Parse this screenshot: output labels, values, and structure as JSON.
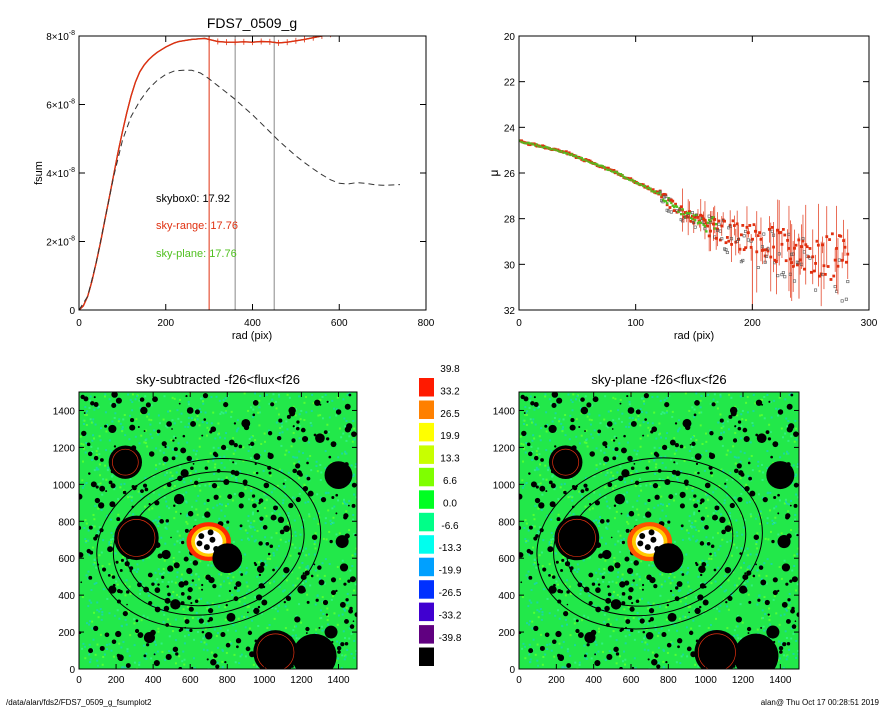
{
  "footer": {
    "left": "/data/alan/fds2/FDS7_0509_g_fsumplot2",
    "right": "alan@  Thu Oct 17 00:28:51 2019"
  },
  "colors": {
    "sky_range": "#e03010",
    "sky_plane": "#50c020",
    "dashed": "#333333",
    "vline_red": "#e03010",
    "vline_gray": "#888888"
  },
  "chart_data": [
    {
      "type": "line",
      "title": "FDS7_0509_g",
      "xlabel": "rad (pix)",
      "ylabel": "fsum",
      "xlim": [
        0,
        800
      ],
      "ylim": [
        0,
        8e-08
      ],
      "xticks": [
        "0",
        "200",
        "400",
        "600",
        "800"
      ],
      "yticks": [
        {
          "value": 0,
          "mant": "0",
          "exp": ""
        },
        {
          "value": 2e-08,
          "mant": "2×10",
          "exp": "-8"
        },
        {
          "value": 4e-08,
          "mant": "4×10",
          "exp": "-8"
        },
        {
          "value": 6e-08,
          "mant": "6×10",
          "exp": "-8"
        },
        {
          "value": 8e-08,
          "mant": "8×10",
          "exp": "-8"
        }
      ],
      "annotations": [
        {
          "text": "skybox0: 17.92",
          "color": "#000000"
        },
        {
          "text": "sky-range: 17.76",
          "color": "#e03010"
        },
        {
          "text": "sky-plane: 17.76",
          "color": "#50c020"
        }
      ],
      "vlines": [
        {
          "x": 300,
          "color": "#e03010"
        },
        {
          "x": 360,
          "color": "#888888"
        },
        {
          "x": 450,
          "color": "#888888"
        }
      ],
      "series": [
        {
          "style": "solid",
          "color": "#e03010",
          "x": [
            0,
            10,
            20,
            30,
            40,
            50,
            60,
            70,
            80,
            90,
            100,
            110,
            120,
            130,
            140,
            150,
            160,
            170,
            180,
            190,
            200,
            210,
            220,
            230,
            240,
            250,
            260,
            270,
            280,
            290,
            300,
            320,
            340,
            360,
            380,
            400,
            420,
            440,
            460,
            480,
            500,
            520,
            540,
            560,
            580
          ],
          "y": [
            0,
            1.2e-09,
            4e-09,
            8.5e-09,
            1.4e-08,
            2e-08,
            2.65e-08,
            3.3e-08,
            3.95e-08,
            4.6e-08,
            5.2e-08,
            5.75e-08,
            6.25e-08,
            6.65e-08,
            6.95e-08,
            7.15e-08,
            7.3e-08,
            7.42e-08,
            7.52e-08,
            7.6e-08,
            7.68e-08,
            7.74e-08,
            7.8e-08,
            7.84e-08,
            7.86e-08,
            7.88e-08,
            7.9e-08,
            7.91e-08,
            7.92e-08,
            7.93e-08,
            7.9e-08,
            7.84e-08,
            7.82e-08,
            7.82e-08,
            7.83e-08,
            7.82e-08,
            7.84e-08,
            7.83e-08,
            7.8e-08,
            7.82e-08,
            7.86e-08,
            7.9e-08,
            7.95e-08,
            8e-08,
            8.05e-08
          ]
        },
        {
          "style": "dashed",
          "color": "#333333",
          "x": [
            0,
            20,
            40,
            60,
            80,
            100,
            120,
            140,
            160,
            180,
            200,
            220,
            240,
            260,
            280,
            300,
            320,
            340,
            360,
            380,
            400,
            420,
            440,
            460,
            480,
            500,
            520,
            540,
            560,
            580,
            600,
            620,
            640,
            660,
            680,
            700,
            720,
            740
          ],
          "y": [
            0,
            4e-09,
            1.4e-08,
            2.65e-08,
            3.9e-08,
            4.95e-08,
            5.65e-08,
            6.1e-08,
            6.45e-08,
            6.7e-08,
            6.88e-08,
            6.98e-08,
            7e-08,
            7e-08,
            6.92e-08,
            6.75e-08,
            6.55e-08,
            6.35e-08,
            6.15e-08,
            5.92e-08,
            5.7e-08,
            5.45e-08,
            5.2e-08,
            4.95e-08,
            4.72e-08,
            4.5e-08,
            4.3e-08,
            4.12e-08,
            3.95e-08,
            3.8e-08,
            3.7e-08,
            3.68e-08,
            3.72e-08,
            3.7e-08,
            3.66e-08,
            3.64e-08,
            3.65e-08,
            3.66e-08
          ]
        }
      ]
    },
    {
      "type": "scatter",
      "title": "",
      "xlabel": "rad (pix)",
      "ylabel": "μ",
      "xlim": [
        0,
        300
      ],
      "ylim": [
        32,
        20
      ],
      "xticks": [
        "0",
        "100",
        "200",
        "300"
      ],
      "yticks": [
        "20",
        "22",
        "24",
        "26",
        "28",
        "30",
        "32"
      ],
      "trend": [
        {
          "x": 0,
          "y": 24.6
        },
        {
          "x": 40,
          "y": 25.1
        },
        {
          "x": 80,
          "y": 25.9
        },
        {
          "x": 120,
          "y": 26.9
        },
        {
          "x": 140,
          "y": 27.7
        },
        {
          "x": 160,
          "y": 28.2
        },
        {
          "x": 200,
          "y": 28.9
        },
        {
          "x": 240,
          "y": 29.4
        },
        {
          "x": 280,
          "y": 29.8
        }
      ],
      "series": [
        {
          "name": "sky-range",
          "color": "#e03010"
        },
        {
          "name": "sky-plane",
          "color": "#50c020"
        },
        {
          "name": "skybox0",
          "color": "#555555"
        }
      ]
    },
    {
      "type": "heatmap",
      "title": "sky-subtracted -f26<flux<f26",
      "xlim": [
        0,
        1500
      ],
      "ylim": [
        0,
        1500
      ],
      "xticks": [
        "0",
        "200",
        "400",
        "600",
        "800",
        "1000",
        "1200",
        "1400"
      ],
      "yticks": [
        "0",
        "200",
        "400",
        "600",
        "800",
        "1000",
        "1200",
        "1400"
      ]
    },
    {
      "type": "heatmap",
      "title": "sky-plane -f26<flux<f26",
      "xlim": [
        0,
        1500
      ],
      "ylim": [
        0,
        1500
      ],
      "xticks": [
        "0",
        "200",
        "400",
        "600",
        "800",
        "1000",
        "1200",
        "1400"
      ],
      "yticks": [
        "0",
        "200",
        "400",
        "600",
        "800",
        "1000",
        "1200",
        "1400"
      ]
    }
  ],
  "colorbar": {
    "labels": [
      "39.8",
      "33.2",
      "26.5",
      "19.9",
      "13.3",
      "6.6",
      "0.0",
      "-6.6",
      "-13.3",
      "-19.9",
      "-26.5",
      "-33.2",
      "-39.8"
    ],
    "colors": [
      "#ff1a00",
      "#ff8000",
      "#ffff00",
      "#c8ff00",
      "#7fff00",
      "#00ff22",
      "#00ff88",
      "#00ffee",
      "#00a0ff",
      "#0030ff",
      "#4000d0",
      "#600080",
      "#000000"
    ]
  },
  "sources": [
    {
      "x": 250,
      "y": 1120,
      "r": 90
    },
    {
      "x": 540,
      "y": 920,
      "r": 28
    },
    {
      "x": 570,
      "y": 1060,
      "r": 22
    },
    {
      "x": 1400,
      "y": 1050,
      "r": 75
    },
    {
      "x": 310,
      "y": 710,
      "r": 120
    },
    {
      "x": 470,
      "y": 620,
      "r": 25
    },
    {
      "x": 800,
      "y": 600,
      "r": 80
    },
    {
      "x": 640,
      "y": 640,
      "r": 28
    },
    {
      "x": 720,
      "y": 660,
      "r": 20
    },
    {
      "x": 1060,
      "y": 90,
      "r": 120
    },
    {
      "x": 1270,
      "y": 70,
      "r": 120
    },
    {
      "x": 1360,
      "y": 200,
      "r": 35
    },
    {
      "x": 1420,
      "y": 690,
      "r": 35
    },
    {
      "x": 1120,
      "y": 760,
      "r": 18
    },
    {
      "x": 980,
      "y": 540,
      "r": 20
    },
    {
      "x": 1050,
      "y": 820,
      "r": 16
    },
    {
      "x": 180,
      "y": 430,
      "r": 22
    },
    {
      "x": 520,
      "y": 350,
      "r": 28
    },
    {
      "x": 820,
      "y": 280,
      "r": 24
    },
    {
      "x": 700,
      "y": 180,
      "r": 20
    },
    {
      "x": 380,
      "y": 170,
      "r": 30
    },
    {
      "x": 180,
      "y": 1300,
      "r": 22
    },
    {
      "x": 600,
      "y": 1400,
      "r": 18
    },
    {
      "x": 900,
      "y": 1330,
      "r": 24
    },
    {
      "x": 1150,
      "y": 1400,
      "r": 20
    },
    {
      "x": 1300,
      "y": 1250,
      "r": 26
    },
    {
      "x": 1200,
      "y": 430,
      "r": 22
    },
    {
      "x": 960,
      "y": 1150,
      "r": 18
    },
    {
      "x": 350,
      "y": 1400,
      "r": 20
    },
    {
      "x": 1450,
      "y": 1420,
      "r": 16
    },
    {
      "x": 1430,
      "y": 550,
      "r": 22
    },
    {
      "x": 740,
      "y": 930,
      "r": 14
    },
    {
      "x": 260,
      "y": 570,
      "r": 14
    },
    {
      "x": 1250,
      "y": 950,
      "r": 16
    },
    {
      "x": 860,
      "y": 460,
      "r": 16
    },
    {
      "x": 600,
      "y": 430,
      "r": 14
    },
    {
      "x": 420,
      "y": 900,
      "r": 14
    },
    {
      "x": 1000,
      "y": 360,
      "r": 16
    },
    {
      "x": 80,
      "y": 1000,
      "r": 16
    },
    {
      "x": 90,
      "y": 220,
      "r": 14
    },
    {
      "x": 1330,
      "y": 360,
      "r": 14
    },
    {
      "x": 1180,
      "y": 1100,
      "r": 14
    },
    {
      "x": 1080,
      "y": 1250,
      "r": 12
    },
    {
      "x": 780,
      "y": 1200,
      "r": 14
    },
    {
      "x": 460,
      "y": 1220,
      "r": 14
    },
    {
      "x": 300,
      "y": 980,
      "r": 12
    },
    {
      "x": 660,
      "y": 260,
      "r": 14
    },
    {
      "x": 250,
      "y": 300,
      "r": 14
    },
    {
      "x": 1440,
      "y": 830,
      "r": 14
    },
    {
      "x": 980,
      "y": 680,
      "r": 12
    }
  ],
  "ellipses": [
    {
      "cx": 700,
      "cy": 680,
      "rx": 450,
      "ry": 330
    },
    {
      "cx": 700,
      "cy": 680,
      "rx": 520,
      "ry": 380
    },
    {
      "cx": 700,
      "cy": 680,
      "rx": 610,
      "ry": 450
    }
  ]
}
